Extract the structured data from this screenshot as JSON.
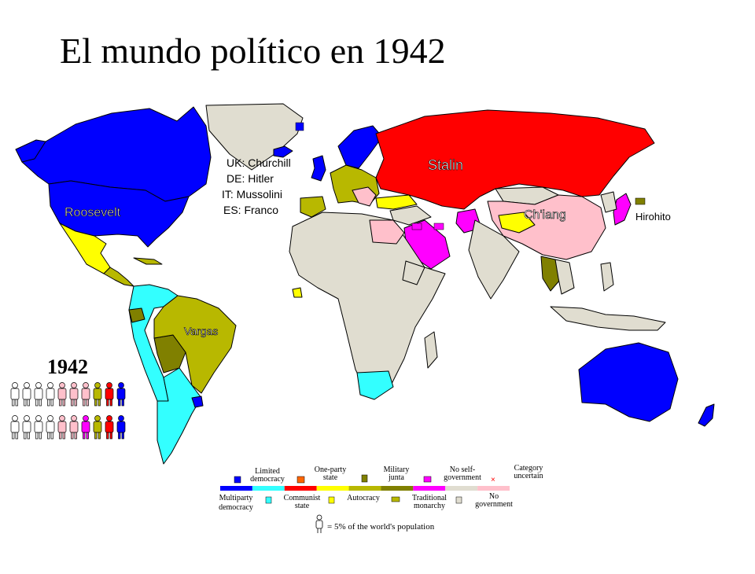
{
  "title": "El mundo político en 1942",
  "map": {
    "year_badge": "1942",
    "leaders": {
      "roosevelt": "Roosevelt",
      "stalin": "Stalin",
      "chiang": "Ch'iang",
      "hirohito": "Hirohito",
      "vargas": "Vargas"
    },
    "europe_leaders": [
      "UK: Churchill",
      "DE: Hitler",
      "IT: Mussolini",
      "ES: Franco"
    ],
    "legend": {
      "top_labels": {
        "limited": [
          "Limited",
          "democracy"
        ],
        "oneparty": [
          "One-party",
          "state"
        ],
        "military": [
          "Military",
          "junta"
        ],
        "noself": [
          "No self-",
          "government"
        ],
        "uncertain": [
          "Category",
          "uncertain"
        ]
      },
      "bottom_labels": {
        "multiparty": [
          "Multiparty",
          "democracy"
        ],
        "communist": [
          "Communist",
          "state"
        ],
        "autocracy": [
          "Autocracy"
        ],
        "traditional": [
          "Traditional",
          "monarchy"
        ],
        "nogov": [
          "No",
          "government"
        ]
      },
      "population_note": "= 5% of the world's population",
      "colors": [
        "#0000ff",
        "#33ffff",
        "#ff0000",
        "#ffff00",
        "#b8b800",
        "#808000",
        "#ff00ff",
        "#e0ddd0",
        "#ffc0cb"
      ]
    },
    "population_figures": {
      "unit_percent": 5,
      "row1": [
        "#ffffff",
        "#ffffff",
        "#ffffff",
        "#ffffff",
        "#ffc0cb",
        "#ffc0cb",
        "#ffc0cb",
        "#b8b800",
        "#ff0000",
        "#0000ff"
      ],
      "row2": [
        "#ffffff",
        "#ffffff",
        "#ffffff",
        "#ffffff",
        "#ffc0cb",
        "#ffc0cb",
        "#ff00ff",
        "#b8b800",
        "#ff0000",
        "#0000ff"
      ]
    }
  }
}
